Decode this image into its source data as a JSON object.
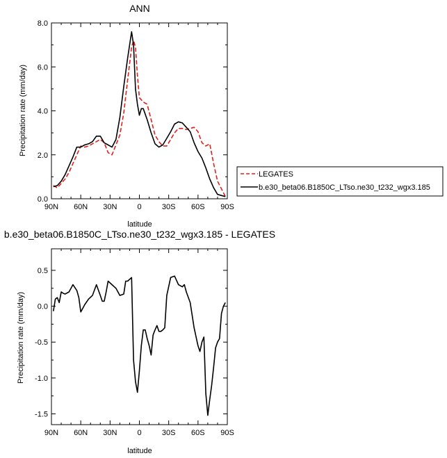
{
  "colors": {
    "legates": "#e0201c",
    "model": "#000000",
    "axis": "#000000"
  },
  "chart_data": [
    {
      "type": "line",
      "title": "ANN",
      "xlabel": "latitude",
      "ylabel": "Precipitation rate (mm/day)",
      "xlim": [
        90,
        -90
      ],
      "ylim": [
        0,
        8
      ],
      "xticks": [
        {
          "value": 90,
          "label": "90N"
        },
        {
          "value": 60,
          "label": "60N"
        },
        {
          "value": 30,
          "label": "30N"
        },
        {
          "value": 0,
          "label": "0"
        },
        {
          "value": -30,
          "label": "30S"
        },
        {
          "value": -60,
          "label": "60S"
        },
        {
          "value": -90,
          "label": "90S"
        }
      ],
      "yticks": [
        {
          "value": 0,
          "label": "0.0"
        },
        {
          "value": 2,
          "label": "2.0"
        },
        {
          "value": 4,
          "label": "4.0"
        },
        {
          "value": 6,
          "label": "6.0"
        },
        {
          "value": 8,
          "label": "8.0"
        }
      ],
      "legend_position": "right",
      "series": [
        {
          "name": "LEGATES",
          "color": "#e0201c",
          "dash": true,
          "x": [
            88,
            84,
            80,
            76,
            72,
            68,
            64,
            60,
            56,
            52,
            48,
            44,
            40,
            36,
            32,
            28,
            24,
            20,
            16,
            12,
            8,
            6,
            4,
            2,
            0,
            -2,
            -4,
            -8,
            -12,
            -16,
            -20,
            -24,
            -28,
            -32,
            -36,
            -40,
            -44,
            -48,
            -52,
            -56,
            -60,
            -64,
            -68,
            -72,
            -76,
            -80,
            -84,
            -88
          ],
          "y": [
            0.6,
            0.5,
            0.7,
            0.9,
            1.2,
            1.6,
            2.0,
            2.4,
            2.35,
            2.4,
            2.5,
            2.6,
            2.7,
            2.55,
            2.1,
            2.0,
            2.45,
            2.9,
            3.9,
            5.4,
            6.9,
            7.2,
            6.9,
            5.6,
            4.6,
            4.5,
            4.4,
            4.3,
            3.6,
            2.9,
            2.6,
            2.4,
            2.4,
            2.7,
            3.0,
            3.2,
            3.2,
            3.15,
            3.2,
            3.25,
            3.05,
            2.55,
            2.4,
            2.5,
            1.6,
            0.8,
            0.45,
            0.1
          ]
        },
        {
          "name": "b.e30_beta06.B1850C_LTso.ne30_t232_wgx3.185",
          "color": "#000000",
          "dash": false,
          "x": [
            88,
            84,
            80,
            76,
            72,
            68,
            64,
            60,
            56,
            52,
            48,
            44,
            40,
            36,
            32,
            28,
            24,
            20,
            16,
            12,
            8,
            6,
            4,
            2,
            0,
            -2,
            -4,
            -8,
            -12,
            -16,
            -20,
            -24,
            -28,
            -32,
            -36,
            -40,
            -44,
            -48,
            -52,
            -56,
            -60,
            -64,
            -68,
            -72,
            -76,
            -80,
            -84,
            -88
          ],
          "y": [
            0.55,
            0.6,
            0.8,
            1.1,
            1.5,
            1.9,
            2.35,
            2.35,
            2.45,
            2.5,
            2.6,
            2.85,
            2.85,
            2.55,
            2.45,
            2.35,
            2.7,
            3.7,
            5.1,
            6.4,
            7.6,
            7.0,
            5.0,
            4.3,
            3.8,
            4.1,
            4.1,
            3.6,
            3.0,
            2.5,
            2.35,
            2.45,
            2.75,
            3.05,
            3.4,
            3.5,
            3.45,
            3.25,
            3.05,
            2.55,
            2.15,
            1.85,
            1.4,
            0.9,
            0.5,
            0.2,
            0.15,
            0.1
          ]
        }
      ]
    },
    {
      "type": "line",
      "title": "b.e30_beta06.B1850C_LTso.ne30_t232_wgx3.185 - LEGATES",
      "xlabel": "latitude",
      "ylabel": "Precipitation rate (mm/day)",
      "xlim": [
        90,
        -90
      ],
      "ylim": [
        -1.65,
        0.8
      ],
      "xticks": [
        {
          "value": 90,
          "label": "90N"
        },
        {
          "value": 60,
          "label": "60N"
        },
        {
          "value": 30,
          "label": "30N"
        },
        {
          "value": 0,
          "label": "0"
        },
        {
          "value": -30,
          "label": "30S"
        },
        {
          "value": -60,
          "label": "60S"
        },
        {
          "value": -90,
          "label": "90S"
        }
      ],
      "yticks": [
        {
          "value": 0.5,
          "label": "0.5"
        },
        {
          "value": 0,
          "label": "0.0"
        },
        {
          "value": -0.5,
          "label": "-0.5"
        },
        {
          "value": -1,
          "label": "-1.0"
        },
        {
          "value": -1.5,
          "label": "-1.5"
        }
      ],
      "series": [
        {
          "color": "#000000",
          "dash": false,
          "x": [
            88,
            86,
            84,
            82,
            80,
            78,
            76,
            72,
            68,
            64,
            62,
            60,
            58,
            56,
            52,
            48,
            44,
            40,
            38,
            36,
            34,
            32,
            28,
            24,
            20,
            16,
            14,
            12,
            8,
            6,
            4,
            2,
            0,
            -2,
            -4,
            -6,
            -8,
            -10,
            -12,
            -14,
            -16,
            -18,
            -20,
            -22,
            -24,
            -26,
            -28,
            -32,
            -36,
            -40,
            -44,
            -46,
            -48,
            -52,
            -56,
            -60,
            -62,
            -64,
            -66,
            -68,
            -70,
            -72,
            -74,
            -76,
            -78,
            -80,
            -82,
            -84,
            -86,
            -88
          ],
          "y": [
            -0.07,
            0.1,
            0.12,
            0.05,
            0.2,
            0.18,
            0.17,
            0.2,
            0.3,
            0.22,
            0.12,
            -0.08,
            -0.03,
            0.02,
            0.1,
            0.15,
            0.3,
            0.15,
            0.07,
            0.07,
            0.2,
            0.35,
            0.3,
            0.25,
            0.15,
            0.17,
            0.35,
            0.35,
            0.4,
            -0.75,
            -1.05,
            -1.2,
            -0.9,
            -0.55,
            -0.33,
            -0.33,
            -0.45,
            -0.55,
            -0.68,
            -0.4,
            -0.33,
            -0.27,
            -0.35,
            -0.35,
            -0.33,
            -0.3,
            0.15,
            0.4,
            0.42,
            0.3,
            0.27,
            0.3,
            0.2,
            0.05,
            -0.3,
            -0.55,
            -0.63,
            -0.5,
            -0.43,
            -1.22,
            -1.52,
            -1.3,
            -1.1,
            -0.85,
            -0.58,
            -0.5,
            -0.45,
            -0.1,
            0.0,
            0.05
          ]
        }
      ]
    }
  ]
}
